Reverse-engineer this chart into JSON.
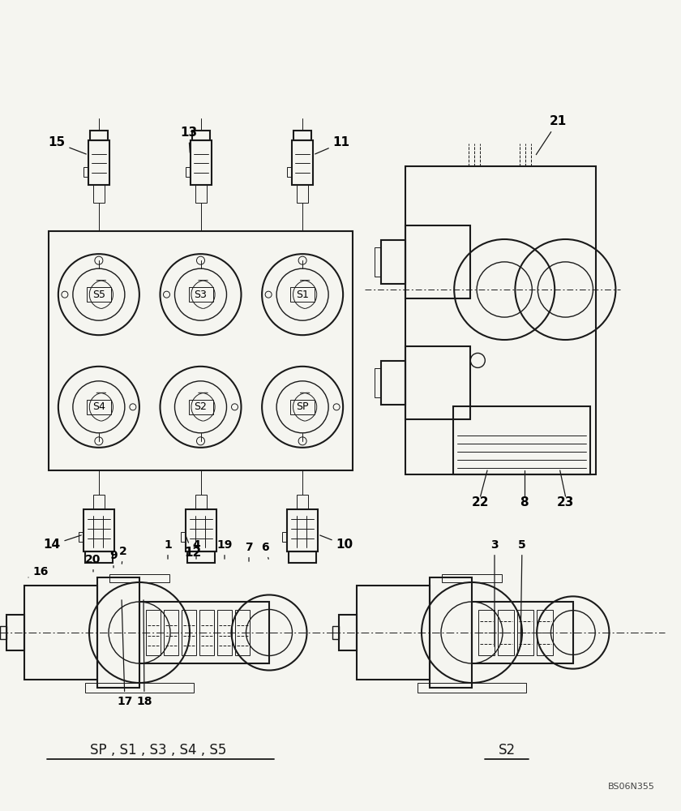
{
  "bg_color": "#f5f5f0",
  "line_color": "#1a1a1a",
  "label_color": "#000000",
  "title_ref": "BS06N355",
  "caption_left": "SP , S1 , S3 , S4 , S5",
  "caption_right": "S2",
  "top_solenoid_labels": [
    "S5",
    "S3",
    "S1"
  ],
  "bot_solenoid_labels": [
    "S4",
    "S2",
    "SP"
  ],
  "top_connector_labels": [
    "15",
    "13",
    "11"
  ],
  "bot_connector_labels": [
    "14",
    "12",
    "10"
  ],
  "side_labels": [
    "21",
    "22",
    "8",
    "23"
  ],
  "cross_labels_left": [
    "16",
    "20",
    "9",
    "2",
    "1",
    "4",
    "19",
    "7",
    "6",
    "17",
    "18"
  ],
  "cross_labels_right": [
    "3",
    "5"
  ]
}
